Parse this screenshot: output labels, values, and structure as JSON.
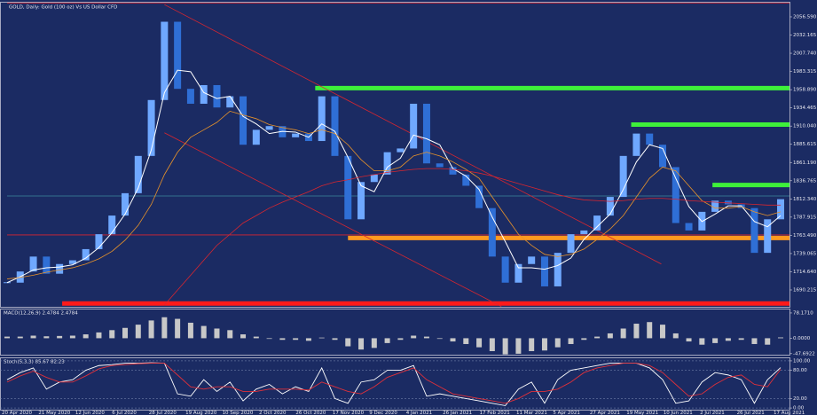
{
  "chart_data": [
    {
      "type": "candlestick",
      "title": "GOLD, Daily: Gold (100 oz) Vs US Dollar CFD",
      "up_color": "#6fa8ff",
      "down_color": "#2f6fd6",
      "values": [
        1700,
        1715,
        1735,
        1712,
        1725,
        1730,
        1745,
        1765,
        1790,
        1820,
        1870,
        1945,
        2050,
        1960,
        1940,
        1965,
        1935,
        1950,
        1885,
        1905,
        1910,
        1895,
        1900,
        1890,
        1950,
        1870,
        1785,
        1835,
        1845,
        1875,
        1880,
        1940,
        1860,
        1855,
        1845,
        1830,
        1800,
        1735,
        1700,
        1725,
        1735,
        1695,
        1740,
        1765,
        1770,
        1790,
        1815,
        1870,
        1900,
        1885,
        1855,
        1780,
        1770,
        1795,
        1810,
        1805,
        1800,
        1740,
        1785,
        1812
      ],
      "series": [
        {
          "color": "#ffffff",
          "values": [
            1700,
            1708,
            1717,
            1720,
            1721,
            1724,
            1733,
            1747,
            1767,
            1792,
            1827,
            1878,
            1955,
            1985,
            1983,
            1955,
            1947,
            1950,
            1923,
            1913,
            1900,
            1903,
            1902,
            1895,
            1913,
            1903,
            1868,
            1830,
            1822,
            1855,
            1867,
            1898,
            1893,
            1885,
            1853,
            1843,
            1825,
            1788,
            1755,
            1720,
            1720,
            1718,
            1723,
            1733,
            1758,
            1775,
            1792,
            1825,
            1862,
            1885,
            1880,
            1840,
            1802,
            1782,
            1792,
            1803,
            1803,
            1782,
            1775,
            1790
          ]
        },
        {
          "color": "#e8932a",
          "values": [
            1705,
            1707,
            1710,
            1714,
            1717,
            1720,
            1725,
            1732,
            1742,
            1757,
            1777,
            1805,
            1845,
            1875,
            1895,
            1905,
            1915,
            1930,
            1925,
            1920,
            1912,
            1908,
            1905,
            1900,
            1905,
            1900,
            1885,
            1865,
            1850,
            1850,
            1855,
            1870,
            1875,
            1870,
            1862,
            1852,
            1840,
            1815,
            1790,
            1765,
            1750,
            1738,
            1735,
            1738,
            1745,
            1758,
            1772,
            1790,
            1815,
            1840,
            1855,
            1850,
            1830,
            1810,
            1800,
            1800,
            1802,
            1795,
            1790,
            1795
          ]
        },
        {
          "color": "#d8262f",
          "values": [
            null,
            null,
            null,
            null,
            null,
            null,
            null,
            null,
            null,
            null,
            null,
            null,
            1670,
            1690,
            1710,
            1730,
            1750,
            1765,
            1780,
            1790,
            1800,
            1808,
            1815,
            1822,
            1830,
            1835,
            1838,
            1842,
            1845,
            1848,
            1850,
            1852,
            1853,
            1853,
            1852,
            1850,
            1847,
            1843,
            1838,
            1833,
            1828,
            1823,
            1818,
            1814,
            1811,
            1810,
            1809,
            1810,
            1812,
            1813,
            1813,
            1812,
            1810,
            1809,
            1808,
            1807,
            1806,
            1805,
            1804,
            1804
          ]
        }
      ],
      "levels": [
        {
          "value": 2075,
          "color": "#d8262f",
          "from": 0,
          "thick": false
        },
        {
          "value": 1816.3,
          "color": "#3c8a9c",
          "from": 0,
          "thick": false
        },
        {
          "value": 1764,
          "color": "#d8262f",
          "from": 0,
          "thick": false
        },
        {
          "value": 1961,
          "color": "#3ef03a",
          "from": 23.5,
          "thick": true
        },
        {
          "value": 1912,
          "color": "#3ef03a",
          "from": 47.6,
          "thick": true
        },
        {
          "value": 1831,
          "color": "#3ef03a",
          "from": 53.8,
          "thick": true
        },
        {
          "value": 1760,
          "color": "#ff9a1f",
          "from": 26,
          "thick": true
        },
        {
          "value": 1672,
          "color": "#ff1a1a",
          "from": 4.2,
          "thick": true
        }
      ],
      "trendlines": [
        {
          "from": [
            12,
            2073
          ],
          "to": [
            49.9,
            1725
          ],
          "color": "#d8262f"
        },
        {
          "from": [
            12,
            1901
          ],
          "to": [
            37.7,
            1668
          ],
          "color": "#d8262f"
        }
      ],
      "ylim": [
        1667.6,
        2075.6
      ],
      "yticks": [
        {
          "value": 2056.59,
          "label": "2056.590"
        },
        {
          "value": 2032.165,
          "label": "2032.165"
        },
        {
          "value": 2007.74,
          "label": "2007.740"
        },
        {
          "value": 1983.315,
          "label": "1983.315"
        },
        {
          "value": 1958.89,
          "label": "1958.890"
        },
        {
          "value": 1934.465,
          "label": "1934.465"
        },
        {
          "value": 1910.04,
          "label": "1910.040"
        },
        {
          "value": 1885.615,
          "label": "1885.615"
        },
        {
          "value": 1861.19,
          "label": "1861.190"
        },
        {
          "value": 1836.765,
          "label": "1836.765"
        },
        {
          "value": 1812.34,
          "label": "1812.340"
        },
        {
          "value": 1787.915,
          "label": "1787.915"
        },
        {
          "value": 1763.49,
          "label": "1763.490"
        },
        {
          "value": 1739.065,
          "label": "1739.065"
        },
        {
          "value": 1714.64,
          "label": "1714.640"
        },
        {
          "value": 1690.215,
          "label": "1690.215"
        }
      ],
      "date_labels": [
        "20 Apr 2020",
        "21 May 2020",
        "12 Jun 2020",
        "6 Jul 2020",
        "28 Jul 2020",
        "19 Aug 2020",
        "10 Sep 2020",
        "2 Oct 2020",
        "26 Oct 2020",
        "17 Nov 2020",
        "9 Dec 2020",
        "4 Jan 2021",
        "26 Jan 2021",
        "17 Feb 2021",
        "11 Mar 2021",
        "5 Apr 2021",
        "27 Apr 2021",
        "19 May 2021",
        "10 Jun 2021",
        "2 Jul 2021",
        "26 Jul 2021",
        "17 Aug 2021"
      ]
    },
    {
      "type": "bar",
      "title": "MACD(12,26,9) 2.4784 2.4784",
      "color": "#c8c8c8",
      "values": [
        5,
        5,
        8,
        6,
        7,
        8,
        12,
        18,
        25,
        32,
        42,
        55,
        65,
        60,
        48,
        38,
        30,
        25,
        12,
        5,
        -2,
        -5,
        -5,
        -8,
        2,
        -5,
        -25,
        -35,
        -30,
        -15,
        -5,
        8,
        5,
        -2,
        -10,
        -18,
        -28,
        -40,
        -50,
        -48,
        -40,
        -38,
        -28,
        -18,
        -5,
        5,
        15,
        30,
        45,
        50,
        42,
        15,
        -10,
        -20,
        -15,
        -8,
        -5,
        -18,
        -20,
        2.4784
      ],
      "ylim": [
        -51,
        89
      ],
      "yticks": [
        {
          "value": 78.171,
          "label": "78.1710"
        },
        {
          "value": 0,
          "label": "0.0000"
        },
        {
          "value": -47.6922,
          "label": "-47.6922"
        }
      ]
    },
    {
      "type": "line",
      "title": "Stoch(5,3,3) 85.67 82.23",
      "grid": true,
      "series": [
        {
          "color": "#ffffff",
          "values": [
            60,
            75,
            85,
            40,
            55,
            60,
            80,
            90,
            92,
            95,
            95,
            96,
            95,
            30,
            25,
            60,
            35,
            55,
            15,
            40,
            50,
            30,
            45,
            35,
            85,
            20,
            10,
            55,
            60,
            80,
            80,
            90,
            25,
            30,
            25,
            20,
            15,
            10,
            5,
            40,
            55,
            10,
            60,
            80,
            85,
            90,
            95,
            95,
            95,
            85,
            60,
            10,
            15,
            55,
            75,
            70,
            60,
            10,
            60,
            85.67
          ]
        },
        {
          "color": "#e0303a",
          "values": [
            55,
            68,
            78,
            65,
            55,
            55,
            68,
            83,
            90,
            92,
            94,
            95,
            95,
            70,
            45,
            40,
            45,
            45,
            35,
            35,
            40,
            40,
            40,
            38,
            55,
            45,
            35,
            30,
            45,
            65,
            75,
            85,
            60,
            45,
            30,
            25,
            20,
            15,
            10,
            20,
            35,
            35,
            40,
            55,
            75,
            85,
            90,
            95,
            95,
            90,
            75,
            50,
            25,
            30,
            50,
            65,
            70,
            50,
            45,
            82.23
          ]
        }
      ],
      "ylim": [
        -3.6,
        105.5
      ],
      "yticks": [
        {
          "value": 100,
          "label": "100.00"
        },
        {
          "value": 80,
          "label": "80.00"
        },
        {
          "value": 20,
          "label": "20.00"
        },
        {
          "value": 0,
          "label": "0.00"
        }
      ]
    }
  ]
}
